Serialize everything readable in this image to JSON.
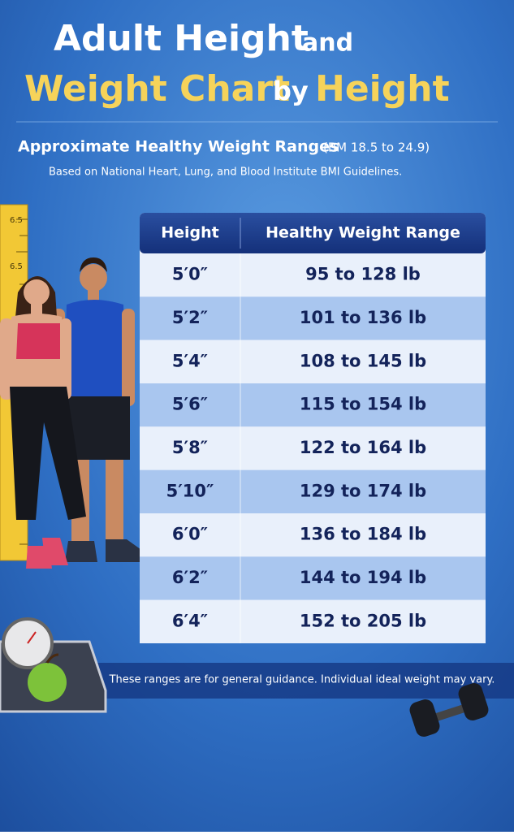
{
  "header": {
    "title_line1": [
      "Adult Height",
      "and"
    ],
    "title_line2": [
      "Weight Chart",
      "by",
      "Height"
    ],
    "subtitle": [
      "Approximate Healthy Weight Ranges",
      "(BM 18.5 to 24.9)"
    ],
    "source": "Based on National Heart, Lung, and Blood Institute BMI Guidelines."
  },
  "ruler_labels": [
    "6.5",
    "6.5"
  ],
  "table": {
    "columns": [
      "Height",
      "Healthy Weight Range"
    ],
    "rows": [
      [
        "5′0″",
        "95 to 128 lb"
      ],
      [
        "5′2″",
        "101 to 136 lb"
      ],
      [
        "5′4″",
        "108 to 145 lb"
      ],
      [
        "5′6″",
        "115 to 154 lb"
      ],
      [
        "5′8″",
        "122 to 164 lb"
      ],
      [
        "5′10″",
        "129 to 174 lb"
      ],
      [
        "6′0″",
        "136 to 184 lb"
      ],
      [
        "6′2″",
        "144 to 194 lb"
      ],
      [
        "6′4″",
        "152 to 205 lb"
      ]
    ]
  },
  "footer": "These ranges are for general guidance. Individual ideal weight may vary."
}
